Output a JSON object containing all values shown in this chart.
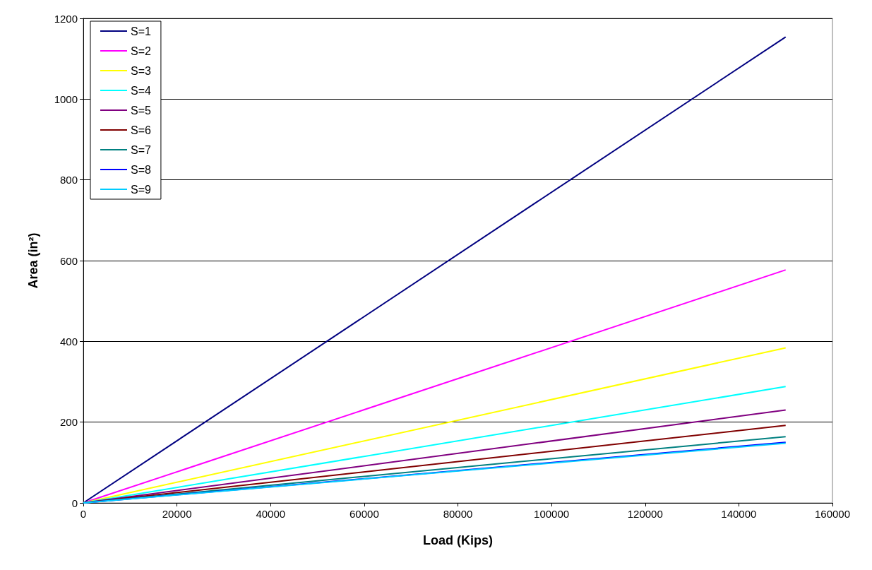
{
  "chart_data": {
    "type": "line",
    "xlabel": "Load (Kips)",
    "ylabel": "Area (in²)",
    "x": [
      0,
      150000
    ],
    "series": [
      {
        "name": "S=1",
        "color": "#000080",
        "values": [
          0,
          1154
        ]
      },
      {
        "name": "S=2",
        "color": "#ff00ff",
        "values": [
          0,
          577
        ]
      },
      {
        "name": "S=3",
        "color": "#ffff00",
        "values": [
          0,
          384
        ]
      },
      {
        "name": "S=4",
        "color": "#00ffff",
        "values": [
          0,
          288
        ]
      },
      {
        "name": "S=5",
        "color": "#800080",
        "values": [
          0,
          230
        ]
      },
      {
        "name": "S=6",
        "color": "#800000",
        "values": [
          0,
          192
        ]
      },
      {
        "name": "S=7",
        "color": "#008080",
        "values": [
          0,
          164
        ]
      },
      {
        "name": "S=8",
        "color": "#0000ff",
        "values": [
          0,
          150
        ]
      },
      {
        "name": "S=9",
        "color": "#00ccff",
        "values": [
          0,
          148
        ]
      }
    ],
    "xlim": [
      0,
      160000
    ],
    "xticks": [
      0,
      20000,
      40000,
      60000,
      80000,
      100000,
      120000,
      140000,
      160000
    ],
    "ylim": [
      0,
      1200
    ],
    "yticks": [
      0,
      200,
      400,
      600,
      800,
      1000,
      1200
    ],
    "grid": "y",
    "legend": "top left",
    "marker": "none",
    "line_style": "solid"
  }
}
